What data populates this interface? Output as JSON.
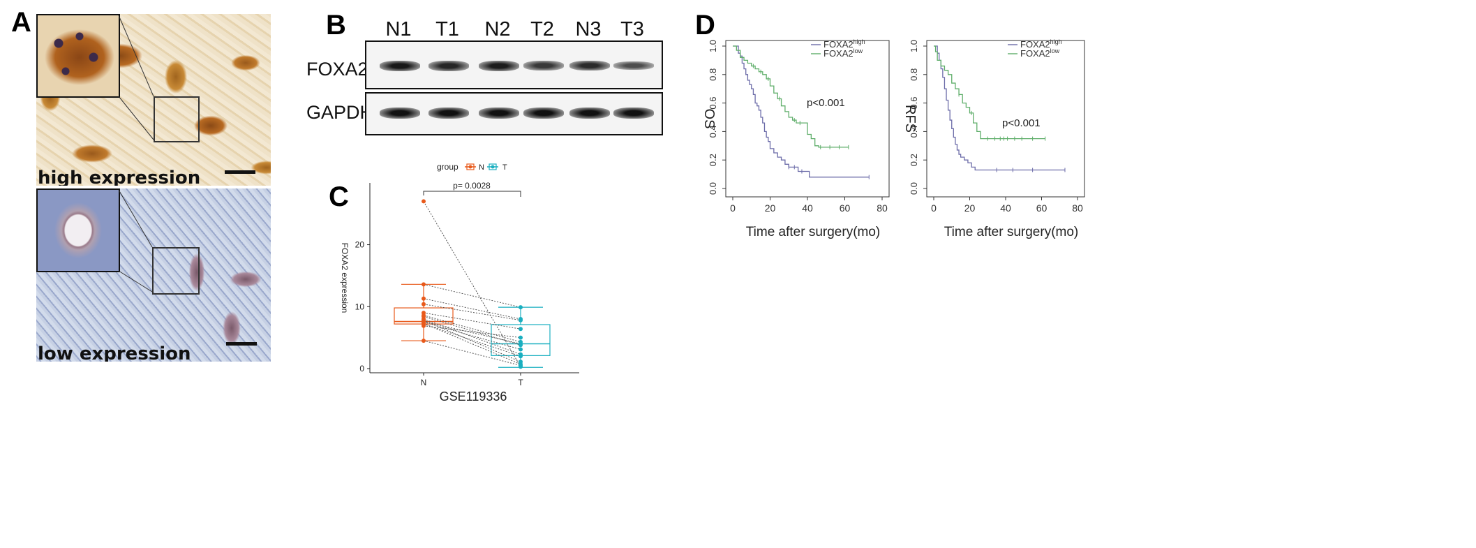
{
  "panels": {
    "A": {
      "letter": "A",
      "captions": [
        "high expression",
        "low expression"
      ]
    },
    "B": {
      "letter": "B",
      "lanes": [
        "N1",
        "T1",
        "N2",
        "T2",
        "N3",
        "T3"
      ],
      "proteins": [
        "FOXA2",
        "GAPDH"
      ],
      "band_intensity": {
        "FOXA2": [
          0.9,
          0.82,
          0.88,
          0.7,
          0.78,
          0.55
        ],
        "GAPDH": [
          0.95,
          0.95,
          0.95,
          0.95,
          0.95,
          0.95
        ]
      }
    },
    "C": {
      "letter": "C",
      "legend_title": "group",
      "groups": [
        "N",
        "T"
      ],
      "colors": {
        "N": "#E8591A",
        "T": "#1AAFC0"
      },
      "pvalue": "p= 0.0028",
      "ylabel": "FOXA2 expression",
      "xlabel": "GSE119336"
    },
    "D": {
      "letter": "D",
      "legend": [
        "FOXA2",
        "FOXA2"
      ],
      "legend_sup": [
        "high",
        "low"
      ],
      "xlabel": "Time after surgery(mo)",
      "colors": {
        "high": "#6B6BA8",
        "low": "#5FAE6A"
      }
    }
  },
  "chart_data": [
    {
      "type": "scatter",
      "title": "",
      "xlabel": "GSE119336",
      "ylabel": "FOXA2 expression",
      "categories": [
        "N",
        "T"
      ],
      "ylim": [
        0,
        28
      ],
      "yticks": [
        0,
        10,
        20
      ],
      "box": {
        "N": {
          "min": 4.5,
          "q1": 7.2,
          "median": 7.6,
          "q3": 9.8,
          "max": 13.6
        },
        "T": {
          "min": 0.2,
          "q1": 2.1,
          "median": 4.0,
          "q3": 7.1,
          "max": 9.9
        }
      },
      "pairs": [
        [
          27.0,
          0.3
        ],
        [
          13.6,
          9.9
        ],
        [
          11.3,
          8.0
        ],
        [
          10.4,
          7.8
        ],
        [
          9.0,
          6.4
        ],
        [
          8.6,
          4.3
        ],
        [
          8.4,
          3.8
        ],
        [
          8.0,
          2.3
        ],
        [
          7.8,
          1.1
        ],
        [
          7.6,
          4.0
        ],
        [
          7.5,
          3.1
        ],
        [
          7.3,
          0.7
        ],
        [
          7.2,
          2.0
        ],
        [
          6.9,
          5.0
        ],
        [
          4.5,
          0.5
        ]
      ],
      "annotations": [
        "p= 0.0028"
      ]
    },
    {
      "type": "line",
      "ylabel": "OS",
      "xlabel": "Time after surgery(mo)",
      "xlim": [
        0,
        80
      ],
      "ylim": [
        0,
        1.0
      ],
      "xticks": [
        0,
        20,
        40,
        60,
        80
      ],
      "yticks": [
        0.0,
        0.2,
        0.4,
        0.6,
        0.8,
        1.0
      ],
      "annotation": "p<0.001",
      "series": [
        {
          "name": "FOXA2high",
          "x": [
            0,
            3,
            4,
            5,
            6,
            7,
            8,
            9,
            10,
            11,
            12,
            13,
            14,
            15,
            16,
            17,
            18,
            19,
            20,
            22,
            24,
            26,
            28,
            30,
            35,
            41,
            73
          ],
          "y": [
            1.0,
            0.95,
            0.93,
            0.88,
            0.84,
            0.8,
            0.76,
            0.73,
            0.7,
            0.66,
            0.6,
            0.58,
            0.55,
            0.5,
            0.46,
            0.4,
            0.36,
            0.33,
            0.28,
            0.25,
            0.22,
            0.2,
            0.17,
            0.15,
            0.12,
            0.08,
            0.08
          ],
          "censor_x": [
            30,
            33,
            37,
            73
          ]
        },
        {
          "name": "FOXA2low",
          "x": [
            0,
            2,
            4,
            6,
            8,
            10,
            12,
            14,
            16,
            18,
            20,
            22,
            24,
            26,
            28,
            30,
            32,
            34,
            36,
            40,
            42,
            44,
            46,
            52,
            62
          ],
          "y": [
            1.0,
            0.97,
            0.92,
            0.9,
            0.88,
            0.86,
            0.84,
            0.82,
            0.8,
            0.77,
            0.72,
            0.67,
            0.63,
            0.58,
            0.54,
            0.5,
            0.48,
            0.46,
            0.46,
            0.38,
            0.35,
            0.3,
            0.29,
            0.29,
            0.29
          ],
          "censor_x": [
            11,
            15,
            19,
            25,
            33,
            36,
            47,
            52,
            57,
            62
          ]
        }
      ]
    },
    {
      "type": "line",
      "ylabel": "RFS",
      "xlabel": "Time after surgery(mo)",
      "xlim": [
        0,
        80
      ],
      "ylim": [
        0,
        1.0
      ],
      "xticks": [
        0,
        20,
        40,
        60,
        80
      ],
      "yticks": [
        0.0,
        0.2,
        0.4,
        0.6,
        0.8,
        1.0
      ],
      "annotation": "p<0.001",
      "series": [
        {
          "name": "FOXA2high",
          "x": [
            0,
            2,
            3,
            4,
            5,
            6,
            7,
            8,
            9,
            10,
            11,
            12,
            13,
            14,
            15,
            17,
            19,
            21,
            23,
            73
          ],
          "y": [
            1.0,
            0.95,
            0.9,
            0.84,
            0.78,
            0.7,
            0.62,
            0.55,
            0.48,
            0.42,
            0.36,
            0.31,
            0.27,
            0.24,
            0.22,
            0.2,
            0.18,
            0.15,
            0.13,
            0.13
          ],
          "censor_x": [
            35,
            44,
            55,
            73
          ]
        },
        {
          "name": "FOXA2low",
          "x": [
            0,
            1,
            2,
            4,
            6,
            8,
            10,
            12,
            14,
            16,
            18,
            20,
            22,
            24,
            26,
            62
          ],
          "y": [
            1.0,
            0.96,
            0.9,
            0.86,
            0.83,
            0.8,
            0.74,
            0.7,
            0.66,
            0.6,
            0.57,
            0.53,
            0.46,
            0.4,
            0.35,
            0.35
          ],
          "censor_x": [
            14,
            21,
            30,
            34,
            37,
            39,
            41,
            45,
            49,
            55,
            62
          ]
        }
      ]
    }
  ]
}
